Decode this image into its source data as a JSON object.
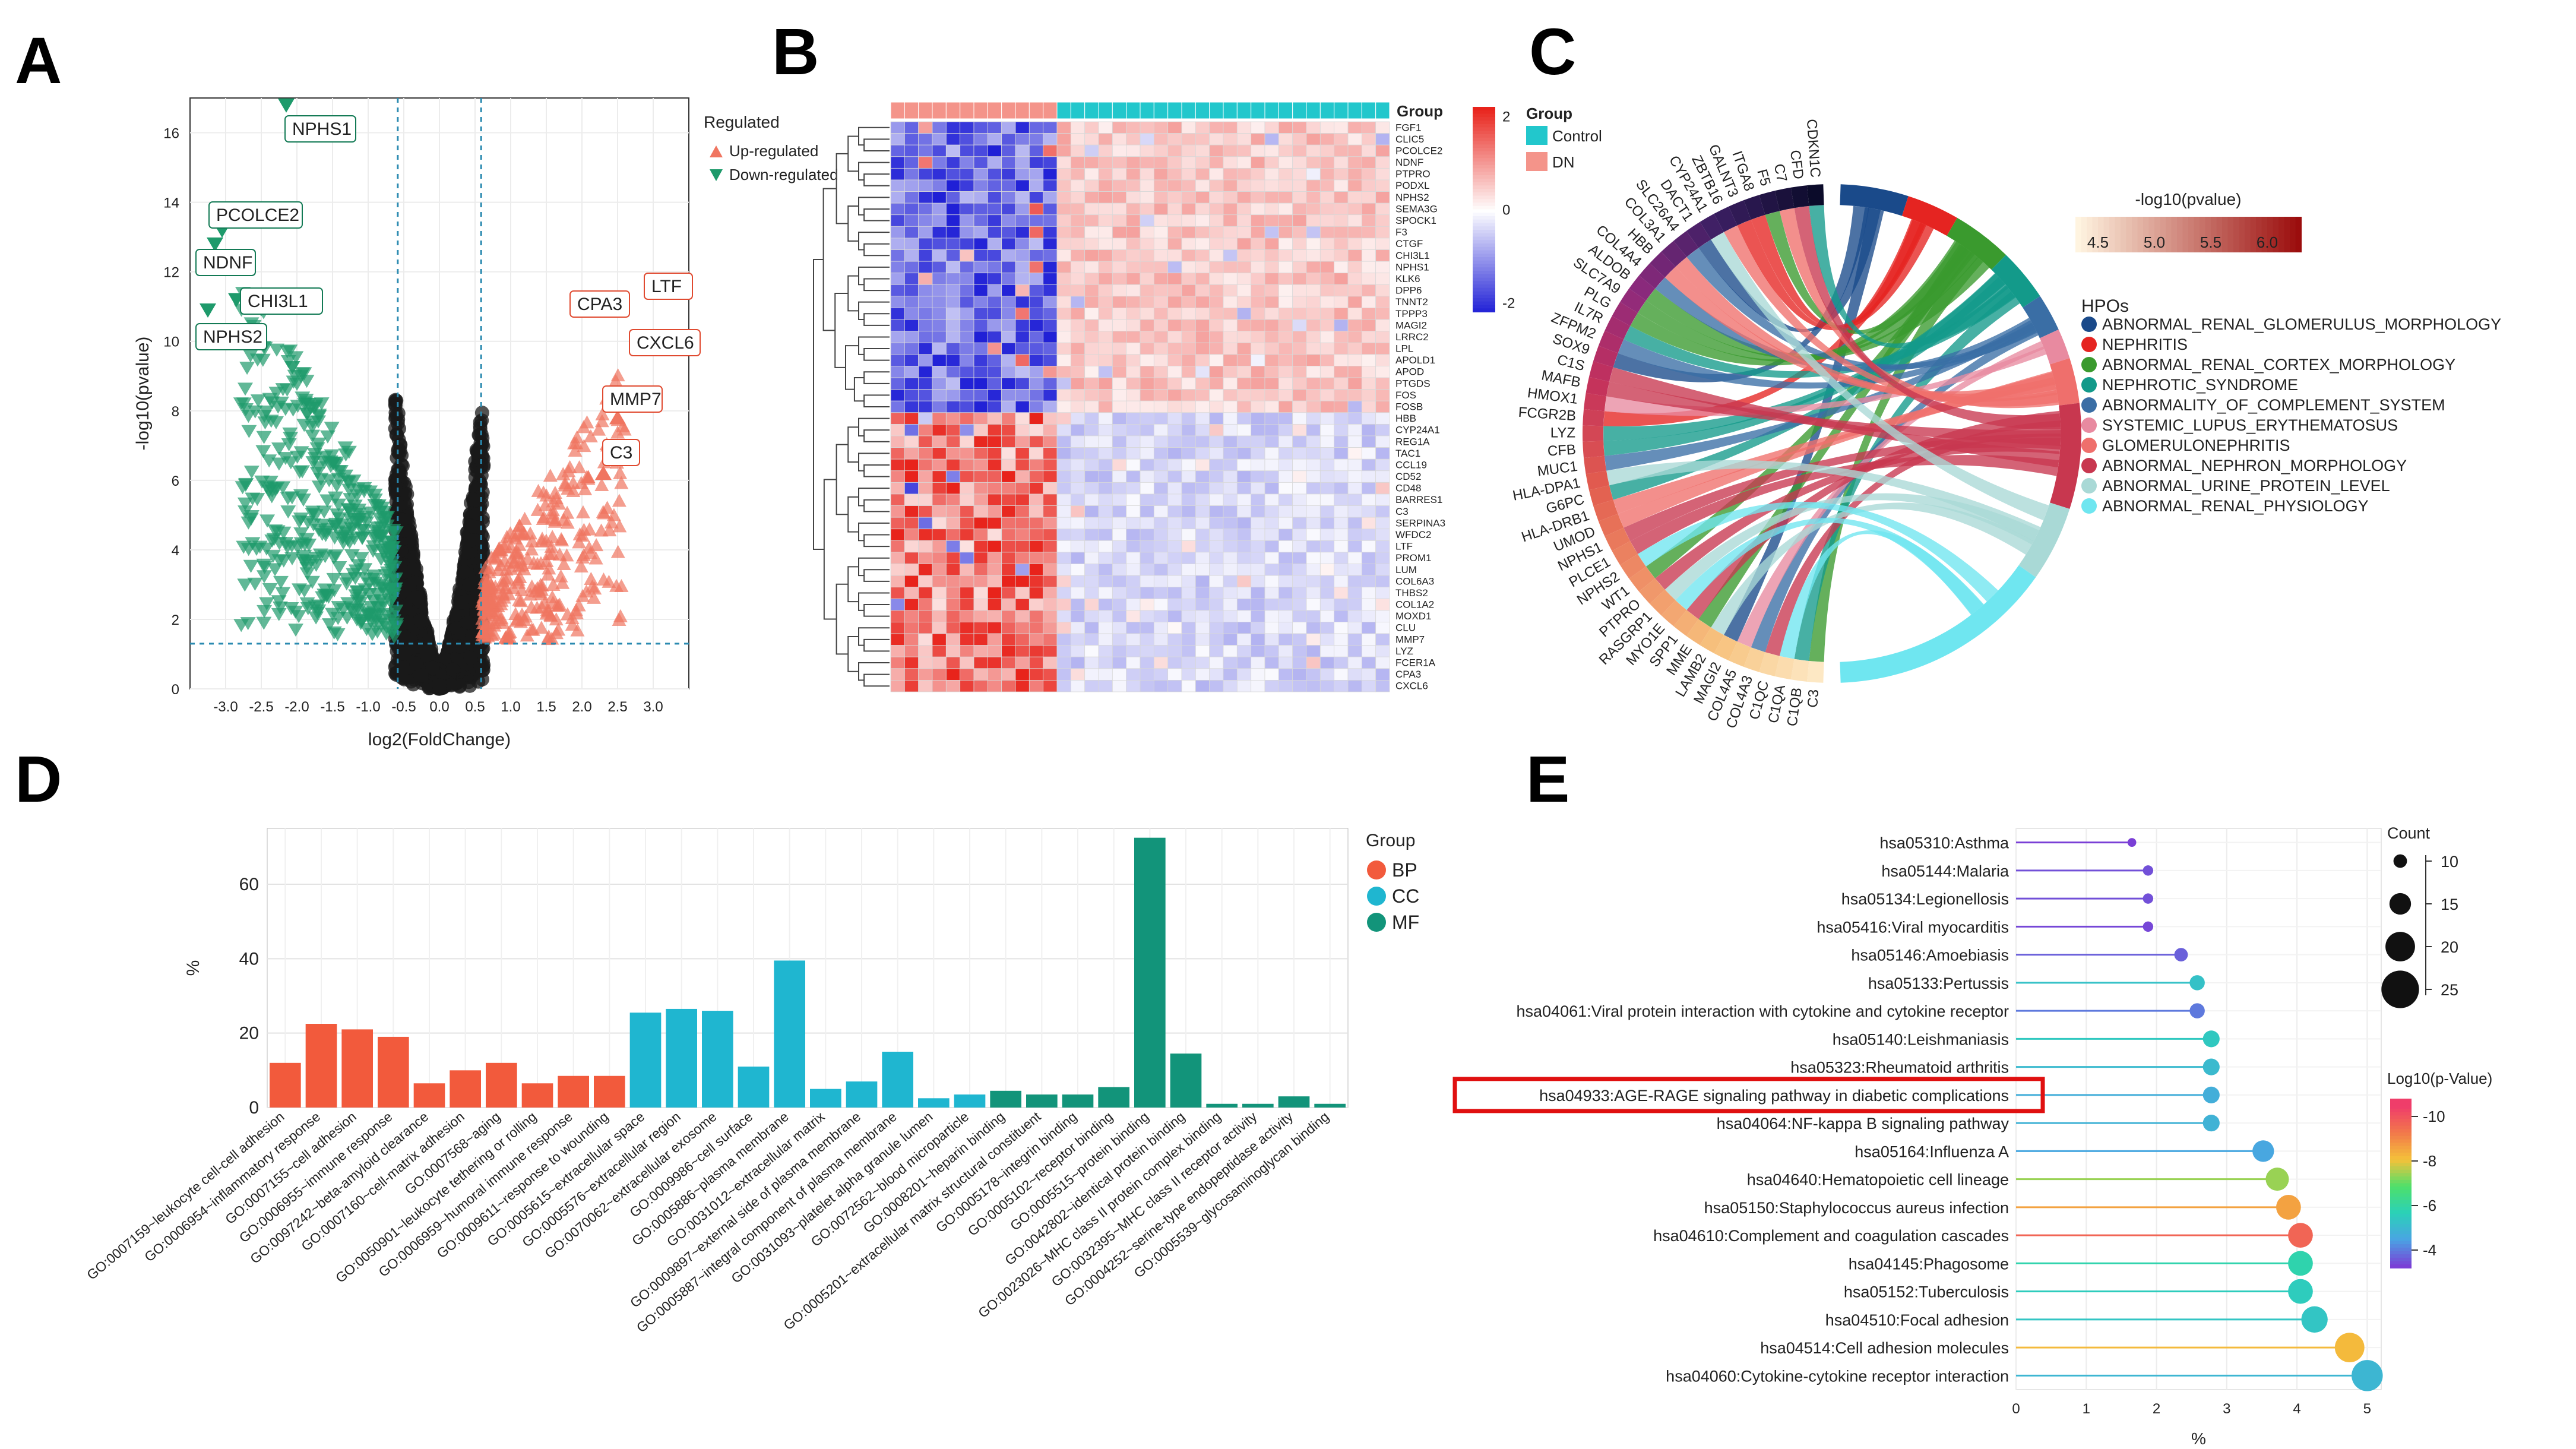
{
  "panels": {
    "a": "A",
    "b": "B",
    "c": "C",
    "d": "D",
    "e": "E"
  },
  "colors": {
    "up": "#f07560",
    "down": "#1e9a6b",
    "ns": "#222222",
    "bp": "#f25a3c",
    "cc": "#1fb6d0",
    "mf": "#12947a"
  },
  "chart_data": [
    {
      "panel": "A",
      "type": "scatter",
      "xlabel": "log2(FoldChange)",
      "ylabel": "-log10(pvalue)",
      "xlim": [
        -3.5,
        3.5
      ],
      "ylim": [
        0,
        17
      ],
      "x_ticks": [
        "-3.0",
        "-2.5",
        "-2.0",
        "-1.5",
        "-1.0",
        "-0.5",
        "0.0",
        "0.5",
        "1.0",
        "1.5",
        "2.0",
        "2.5",
        "3.0"
      ],
      "x_tick_values": [
        -3.0,
        -2.5,
        -2.0,
        -1.5,
        -1.0,
        -0.5,
        0.0,
        0.5,
        1.0,
        1.5,
        2.0,
        2.5,
        3.0
      ],
      "y_ticks": [
        "0",
        "2",
        "4",
        "6",
        "8",
        "10",
        "12",
        "14",
        "16"
      ],
      "y_tick_values": [
        0,
        2,
        4,
        6,
        8,
        10,
        12,
        14,
        16
      ],
      "thresholds": {
        "x": [
          -0.585,
          0.585
        ],
        "y": 1.3
      },
      "legend_title": "Regulated",
      "legend": [
        "Up-regulated",
        "Down-regulated"
      ],
      "labels": [
        {
          "gene": "NPHS1",
          "x": -2.15,
          "y": 16.8,
          "group": "down"
        },
        {
          "gene": "PCOLCE2",
          "x": -3.05,
          "y": 13.2,
          "group": "down"
        },
        {
          "gene": "NDNF",
          "x": -3.15,
          "y": 12.8,
          "group": "down"
        },
        {
          "gene": "CHI3L1",
          "x": -2.85,
          "y": 11.2,
          "group": "down"
        },
        {
          "gene": "NPHS2",
          "x": -3.25,
          "y": 10.9,
          "group": "down"
        },
        {
          "gene": "LTF",
          "x": 3.2,
          "y": 11.4,
          "group": "up"
        },
        {
          "gene": "CPA3",
          "x": 2.15,
          "y": 10.9,
          "group": "up"
        },
        {
          "gene": "CXCL6",
          "x": 3.1,
          "y": 10.0,
          "group": "up"
        },
        {
          "gene": "MMP7",
          "x": 2.5,
          "y": 7.8,
          "group": "up"
        },
        {
          "gene": "C3",
          "x": 2.3,
          "y": 6.2,
          "group": "up"
        }
      ]
    },
    {
      "panel": "B",
      "type": "heatmap",
      "annotation_title": "Group",
      "groups": [
        "Control",
        "DN"
      ],
      "n_dn_samples": 12,
      "n_control_samples": 24,
      "genes_down_in_dn": [
        "FGF1",
        "CLIC5",
        "PCOLCE2",
        "NDNF",
        "PTPRO",
        "PODXL",
        "NPHS2",
        "SEMA3G",
        "SPOCK1",
        "F3",
        "CTGF",
        "CHI3L1",
        "NPHS1",
        "KLK6",
        "DPP6",
        "TNNT2",
        "TPPP3",
        "MAGI2",
        "LRRC2",
        "LPL",
        "APOLD1",
        "APOD",
        "PTGDS",
        "FOS",
        "FOSB"
      ],
      "genes_up_in_dn": [
        "HBB",
        "CYP24A1",
        "REG1A",
        "TAC1",
        "CCL19",
        "CD52",
        "CD48",
        "BARRES1",
        "C3",
        "SERPINA3",
        "WFDC2",
        "LTF",
        "PROM1",
        "LUM",
        "COL6A3",
        "THBS2",
        "COL1A2",
        "MOXD1",
        "CLU",
        "MMP7",
        "LYZ",
        "FCER1A",
        "CPA3",
        "CXCL6"
      ],
      "color_scale_ticks": [
        "2",
        "0",
        "-2"
      ],
      "color_scale_values": [
        2,
        0,
        -2
      ]
    },
    {
      "panel": "C",
      "type": "chord",
      "color_scale_title": "-log10(pvalue)",
      "color_scale_ticks": [
        "4.5",
        "5.0",
        "5.5",
        "6.0"
      ],
      "color_scale_values": [
        4.5,
        5.0,
        5.5,
        6.0
      ],
      "legend_title": "HPOs",
      "hpos": [
        {
          "name": "ABNORMAL_RENAL_GLOMERULUS_MORPHOLOGY",
          "color": "#1a4a8a"
        },
        {
          "name": "NEPHRITIS",
          "color": "#e52421"
        },
        {
          "name": "ABNORMAL_RENAL_CORTEX_MORPHOLOGY",
          "color": "#3a9a2e"
        },
        {
          "name": "NEPHROTIC_SYNDROME",
          "color": "#139a8a"
        },
        {
          "name": "ABNORMALITY_OF_COMPLEMENT_SYSTEM",
          "color": "#3a6ea5"
        },
        {
          "name": "SYSTEMIC_LUPUS_ERYTHEMATOSUS",
          "color": "#e88aa0"
        },
        {
          "name": "GLOMERULONEPHRITIS",
          "color": "#ef6f6c"
        },
        {
          "name": "ABNORMAL_NEPHRON_MORPHOLOGY",
          "color": "#c8374f"
        },
        {
          "name": "ABNORMAL_URINE_PROTEIN_LEVEL",
          "color": "#a9d9d6"
        },
        {
          "name": "ABNORMAL_RENAL_PHYSIOLOGY",
          "color": "#6fe6f0"
        }
      ],
      "genes": [
        "C3",
        "C1QB",
        "C1QA",
        "C1QC",
        "COL4A3",
        "COL4A5",
        "MAGI2",
        "LAMB2",
        "MME",
        "SPP1",
        "MYO1E",
        "RASGRP1",
        "PTPRO",
        "WT1",
        "NPHS2",
        "PLCE1",
        "NPHS1",
        "UMOD",
        "HLA-DRB1",
        "G6PC",
        "HLA-DPA1",
        "MUC1",
        "CFB",
        "LYZ",
        "FCGR2B",
        "HMOX1",
        "MAFB",
        "C1S",
        "SOX9",
        "ZFPM2",
        "IL7R",
        "PLG",
        "SLC7A9",
        "ALDOB",
        "COL4A4",
        "HBB",
        "COL3A1",
        "SLC26A4",
        "DACT1",
        "CYP24A1",
        "ZBTB16",
        "GALNT3",
        "ITGA8",
        "F5",
        "C7",
        "CFD",
        "CDKN1C"
      ]
    },
    {
      "panel": "D",
      "type": "bar",
      "ylabel": "%",
      "ylim": [
        0,
        75
      ],
      "y_ticks": [
        "0",
        "20",
        "40",
        "60"
      ],
      "y_tick_values": [
        0,
        20,
        40,
        60
      ],
      "legend_title": "Group",
      "groups": [
        "BP",
        "CC",
        "MF"
      ],
      "categories": [
        "GO:0007159~leukocyte cell-cell adhesion",
        "GO:0006954~inflammatory response",
        "GO:0007155~cell adhesion",
        "GO:0006955~immune response",
        "GO:0097242~beta-amyloid clearance",
        "GO:0007160~cell-matrix adhesion",
        "GO:0007568~aging",
        "GO:0050901~leukocyte tethering or rolling",
        "GO:0006959~humoral immune response",
        "GO:0009611~response to wounding",
        "GO:0005615~extracellular space",
        "GO:0005576~extracellular region",
        "GO:0070062~extracellular exosome",
        "GO:0009986~cell surface",
        "GO:0005886~plasma membrane",
        "GO:0031012~extracellular matrix",
        "GO:0009897~external side of plasma membrane",
        "GO:0005887~integral component of plasma membrane",
        "GO:0031093~platelet alpha granule lumen",
        "GO:0072562~blood microparticle",
        "GO:0008201~heparin binding",
        "GO:0005201~extracellular matrix structural constituent",
        "GO:0005178~integrin binding",
        "GO:0005102~receptor binding",
        "GO:0005515~protein binding",
        "GO:0042802~identical protein binding",
        "GO:0023026~MHC class II protein complex binding",
        "GO:0032395~MHC class II receptor activity",
        "GO:0004252~serine-type endopeptidase activity",
        "GO:0005539~glycosaminoglycan binding"
      ],
      "group_of": [
        "BP",
        "BP",
        "BP",
        "BP",
        "BP",
        "BP",
        "BP",
        "BP",
        "BP",
        "BP",
        "CC",
        "CC",
        "CC",
        "CC",
        "CC",
        "CC",
        "CC",
        "CC",
        "CC",
        "CC",
        "MF",
        "MF",
        "MF",
        "MF",
        "MF",
        "MF",
        "MF",
        "MF",
        "MF",
        "MF"
      ],
      "values": [
        12,
        22.5,
        21,
        19,
        6.5,
        10,
        12,
        6.5,
        8.5,
        8.5,
        25.5,
        26.5,
        26,
        11,
        39.5,
        5,
        7,
        15,
        2.5,
        3.5,
        4.5,
        3.5,
        3.5,
        5.5,
        72.5,
        14.5,
        1,
        1,
        3,
        1
      ]
    },
    {
      "panel": "E",
      "type": "lollipop",
      "xlabel": "%",
      "xlim": [
        0,
        5.2
      ],
      "x_ticks": [
        "0",
        "1",
        "2",
        "3",
        "4",
        "5"
      ],
      "x_tick_values": [
        0,
        1,
        2,
        3,
        4,
        5
      ],
      "size_legend_title": "Count",
      "size_legend": [
        "10",
        "15",
        "20",
        "25"
      ],
      "size_legend_values": [
        10,
        15,
        20,
        25
      ],
      "color_legend_title": "Log10(p-Value)",
      "color_legend_ticks": [
        "-10",
        "-8",
        "-6",
        "-4"
      ],
      "color_legend_values": [
        -10,
        -8,
        -6,
        -4
      ],
      "highlighted": "hsa04933:AGE-RAGE signaling pathway in diabetic complications",
      "pathways": [
        {
          "name": "hsa05310:Asthma",
          "value": 1.65,
          "count": 7,
          "logp": -3.2
        },
        {
          "name": "hsa05144:Malaria",
          "value": 1.88,
          "count": 8,
          "logp": -3.4
        },
        {
          "name": "hsa05134:Legionellosis",
          "value": 1.88,
          "count": 8,
          "logp": -3.4
        },
        {
          "name": "hsa05416:Viral myocarditis",
          "value": 1.88,
          "count": 8,
          "logp": -3.3
        },
        {
          "name": "hsa05146:Amoebiasis",
          "value": 2.35,
          "count": 10,
          "logp": -3.6
        },
        {
          "name": "hsa05133:Pertussis",
          "value": 2.58,
          "count": 11,
          "logp": -5.2
        },
        {
          "name": "hsa04061:Viral protein interaction with cytokine and cytokine receptor",
          "value": 2.58,
          "count": 11,
          "logp": -3.9
        },
        {
          "name": "hsa05140:Leishmaniasis",
          "value": 2.78,
          "count": 12,
          "logp": -5.4
        },
        {
          "name": "hsa05323:Rheumatoid arthritis",
          "value": 2.78,
          "count": 12,
          "logp": -5.0
        },
        {
          "name": "hsa04933:AGE-RAGE signaling pathway in diabetic complications",
          "value": 2.78,
          "count": 12,
          "logp": -4.7
        },
        {
          "name": "hsa04064:NF-kappa B signaling pathway",
          "value": 2.78,
          "count": 12,
          "logp": -4.8
        },
        {
          "name": "hsa05164:Influenza A",
          "value": 3.52,
          "count": 15,
          "logp": -4.5
        },
        {
          "name": "hsa04640:Hematopoietic cell lineage",
          "value": 3.72,
          "count": 16,
          "logp": -7.4
        },
        {
          "name": "hsa05150:Staphylococcus aureus infection",
          "value": 3.88,
          "count": 17,
          "logp": -8.6
        },
        {
          "name": "hsa04610:Complement and coagulation cascades",
          "value": 4.05,
          "count": 17,
          "logp": -9.7
        },
        {
          "name": "hsa04145:Phagosome",
          "value": 4.05,
          "count": 17,
          "logp": -5.8
        },
        {
          "name": "hsa05152:Tuberculosis",
          "value": 4.05,
          "count": 17,
          "logp": -5.5
        },
        {
          "name": "hsa04510:Focal adhesion",
          "value": 4.25,
          "count": 18,
          "logp": -5.3
        },
        {
          "name": "hsa04514:Cell adhesion molecules",
          "value": 4.75,
          "count": 20,
          "logp": -8.2
        },
        {
          "name": "hsa04060:Cytokine-cytokine receptor interaction",
          "value": 5.0,
          "count": 21,
          "logp": -4.9
        }
      ]
    }
  ]
}
